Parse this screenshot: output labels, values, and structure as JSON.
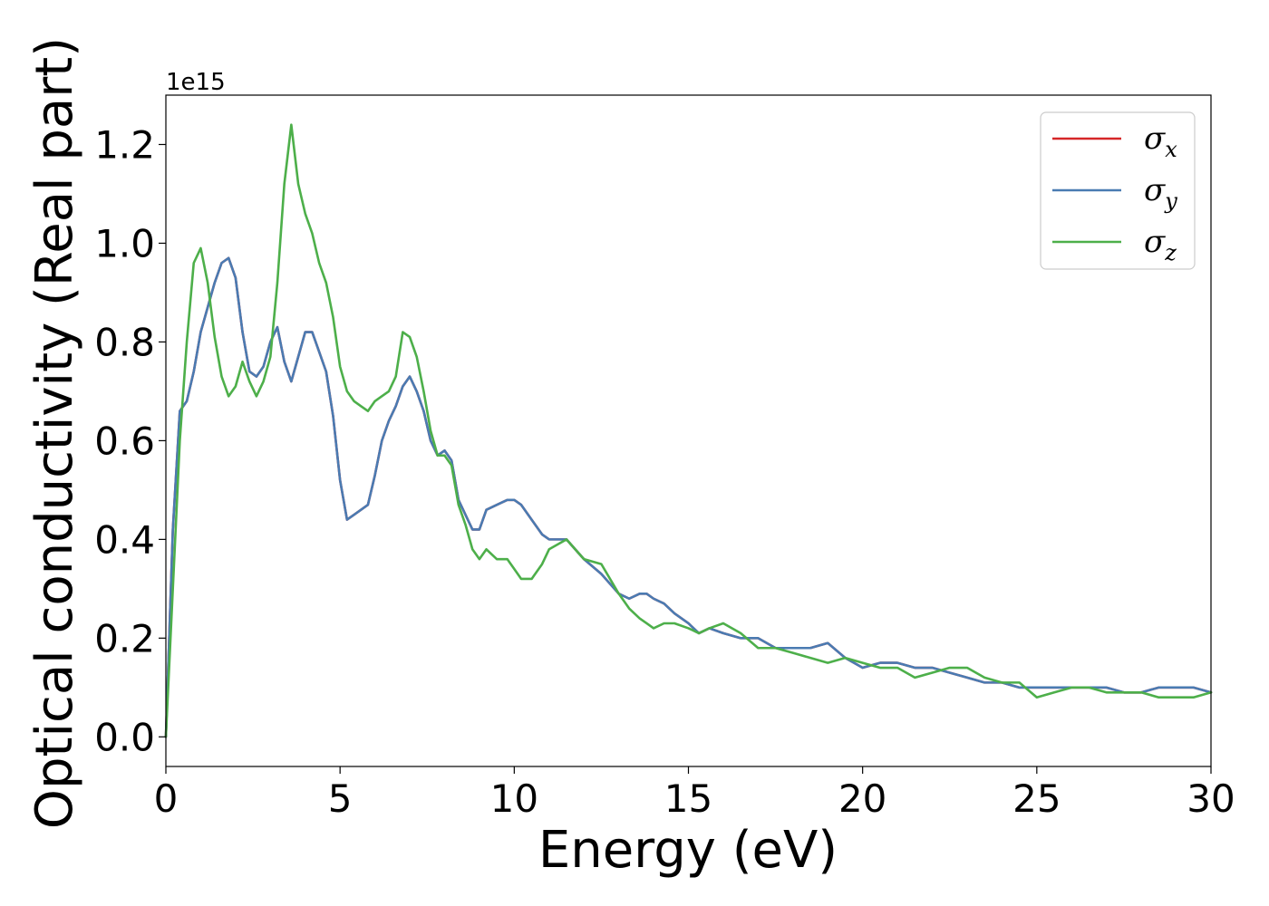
{
  "chart_data": {
    "type": "line",
    "xlabel": "Energy (eV)",
    "ylabel": "Optical conductivity (Real part)",
    "y_offset_text": "1e15",
    "xlim": [
      0,
      30
    ],
    "ylim": [
      -0.06,
      1.3
    ],
    "x_ticks": [
      0,
      5,
      10,
      15,
      20,
      25,
      30
    ],
    "x_tick_labels": [
      "0",
      "5",
      "10",
      "15",
      "20",
      "25",
      "30"
    ],
    "y_ticks": [
      0.0,
      0.2,
      0.4,
      0.6,
      0.8,
      1.0,
      1.2
    ],
    "y_tick_labels": [
      "0.0",
      "0.2",
      "0.4",
      "0.6",
      "0.8",
      "1.0",
      "1.2"
    ],
    "grid": false,
    "legend_position": "top-right",
    "series": [
      {
        "name": "σ",
        "subscript": "x",
        "color": "#d62728",
        "x": [
          0,
          0.2,
          0.4,
          0.6,
          0.8,
          1.0,
          1.2,
          1.4,
          1.6,
          1.8,
          2.0,
          2.2,
          2.4,
          2.6,
          2.8,
          3.0,
          3.2,
          3.4,
          3.6,
          3.8,
          4.0,
          4.2,
          4.4,
          4.6,
          4.8,
          5.0,
          5.2,
          5.4,
          5.6,
          5.8,
          6.0,
          6.2,
          6.4,
          6.6,
          6.8,
          7.0,
          7.2,
          7.4,
          7.6,
          7.8,
          8.0,
          8.2,
          8.4,
          8.6,
          8.8,
          9.0,
          9.2,
          9.5,
          9.8,
          10.0,
          10.2,
          10.5,
          10.8,
          11.0,
          11.5,
          12.0,
          12.5,
          13.0,
          13.3,
          13.6,
          13.8,
          14.0,
          14.3,
          14.6,
          15.0,
          15.3,
          15.6,
          16.0,
          16.5,
          17.0,
          17.5,
          18.0,
          18.5,
          19.0,
          19.5,
          20.0,
          20.5,
          21.0,
          21.5,
          22.0,
          22.5,
          23.0,
          23.5,
          24.0,
          24.5,
          25.0,
          25.5,
          26.0,
          26.5,
          27.0,
          27.5,
          28.0,
          28.5,
          29.0,
          29.5,
          30.0
        ],
        "y": [
          0.0,
          0.42,
          0.66,
          0.68,
          0.74,
          0.82,
          0.87,
          0.92,
          0.96,
          0.97,
          0.93,
          0.82,
          0.74,
          0.73,
          0.75,
          0.8,
          0.83,
          0.76,
          0.72,
          0.77,
          0.82,
          0.82,
          0.78,
          0.74,
          0.65,
          0.52,
          0.44,
          0.45,
          0.46,
          0.47,
          0.53,
          0.6,
          0.64,
          0.67,
          0.71,
          0.73,
          0.7,
          0.66,
          0.6,
          0.57,
          0.58,
          0.56,
          0.48,
          0.45,
          0.42,
          0.42,
          0.46,
          0.47,
          0.48,
          0.48,
          0.47,
          0.44,
          0.41,
          0.4,
          0.4,
          0.36,
          0.33,
          0.29,
          0.28,
          0.29,
          0.29,
          0.28,
          0.27,
          0.25,
          0.23,
          0.21,
          0.22,
          0.21,
          0.2,
          0.2,
          0.18,
          0.18,
          0.18,
          0.19,
          0.16,
          0.14,
          0.15,
          0.15,
          0.14,
          0.14,
          0.13,
          0.12,
          0.11,
          0.11,
          0.1,
          0.1,
          0.1,
          0.1,
          0.1,
          0.1,
          0.09,
          0.09,
          0.1,
          0.1,
          0.1,
          0.09
        ]
      },
      {
        "name": "σ",
        "subscript": "y",
        "color": "#4a7bb2",
        "x": [
          0,
          0.2,
          0.4,
          0.6,
          0.8,
          1.0,
          1.2,
          1.4,
          1.6,
          1.8,
          2.0,
          2.2,
          2.4,
          2.6,
          2.8,
          3.0,
          3.2,
          3.4,
          3.6,
          3.8,
          4.0,
          4.2,
          4.4,
          4.6,
          4.8,
          5.0,
          5.2,
          5.4,
          5.6,
          5.8,
          6.0,
          6.2,
          6.4,
          6.6,
          6.8,
          7.0,
          7.2,
          7.4,
          7.6,
          7.8,
          8.0,
          8.2,
          8.4,
          8.6,
          8.8,
          9.0,
          9.2,
          9.5,
          9.8,
          10.0,
          10.2,
          10.5,
          10.8,
          11.0,
          11.5,
          12.0,
          12.5,
          13.0,
          13.3,
          13.6,
          13.8,
          14.0,
          14.3,
          14.6,
          15.0,
          15.3,
          15.6,
          16.0,
          16.5,
          17.0,
          17.5,
          18.0,
          18.5,
          19.0,
          19.5,
          20.0,
          20.5,
          21.0,
          21.5,
          22.0,
          22.5,
          23.0,
          23.5,
          24.0,
          24.5,
          25.0,
          25.5,
          26.0,
          26.5,
          27.0,
          27.5,
          28.0,
          28.5,
          29.0,
          29.5,
          30.0
        ],
        "y": [
          0.0,
          0.42,
          0.66,
          0.68,
          0.74,
          0.82,
          0.87,
          0.92,
          0.96,
          0.97,
          0.93,
          0.82,
          0.74,
          0.73,
          0.75,
          0.8,
          0.83,
          0.76,
          0.72,
          0.77,
          0.82,
          0.82,
          0.78,
          0.74,
          0.65,
          0.52,
          0.44,
          0.45,
          0.46,
          0.47,
          0.53,
          0.6,
          0.64,
          0.67,
          0.71,
          0.73,
          0.7,
          0.66,
          0.6,
          0.57,
          0.58,
          0.56,
          0.48,
          0.45,
          0.42,
          0.42,
          0.46,
          0.47,
          0.48,
          0.48,
          0.47,
          0.44,
          0.41,
          0.4,
          0.4,
          0.36,
          0.33,
          0.29,
          0.28,
          0.29,
          0.29,
          0.28,
          0.27,
          0.25,
          0.23,
          0.21,
          0.22,
          0.21,
          0.2,
          0.2,
          0.18,
          0.18,
          0.18,
          0.19,
          0.16,
          0.14,
          0.15,
          0.15,
          0.14,
          0.14,
          0.13,
          0.12,
          0.11,
          0.11,
          0.1,
          0.1,
          0.1,
          0.1,
          0.1,
          0.1,
          0.09,
          0.09,
          0.1,
          0.1,
          0.1,
          0.09
        ]
      },
      {
        "name": "σ",
        "subscript": "z",
        "color": "#4daf4a",
        "x": [
          0,
          0.2,
          0.4,
          0.6,
          0.8,
          1.0,
          1.2,
          1.4,
          1.6,
          1.8,
          2.0,
          2.2,
          2.4,
          2.6,
          2.8,
          3.0,
          3.2,
          3.4,
          3.6,
          3.8,
          4.0,
          4.2,
          4.4,
          4.6,
          4.8,
          5.0,
          5.2,
          5.4,
          5.6,
          5.8,
          6.0,
          6.2,
          6.4,
          6.6,
          6.8,
          7.0,
          7.2,
          7.4,
          7.6,
          7.8,
          8.0,
          8.2,
          8.4,
          8.6,
          8.8,
          9.0,
          9.2,
          9.5,
          9.8,
          10.0,
          10.2,
          10.5,
          10.8,
          11.0,
          11.5,
          12.0,
          12.5,
          13.0,
          13.3,
          13.6,
          13.8,
          14.0,
          14.3,
          14.6,
          15.0,
          15.3,
          15.6,
          16.0,
          16.5,
          17.0,
          17.5,
          18.0,
          18.5,
          19.0,
          19.5,
          20.0,
          20.5,
          21.0,
          21.5,
          22.0,
          22.5,
          23.0,
          23.5,
          24.0,
          24.5,
          25.0,
          25.5,
          26.0,
          26.5,
          27.0,
          27.5,
          28.0,
          28.5,
          29.0,
          29.5,
          30.0
        ],
        "y": [
          0.0,
          0.3,
          0.6,
          0.8,
          0.96,
          0.99,
          0.92,
          0.81,
          0.73,
          0.69,
          0.71,
          0.76,
          0.72,
          0.69,
          0.72,
          0.77,
          0.92,
          1.12,
          1.24,
          1.12,
          1.06,
          1.02,
          0.96,
          0.92,
          0.85,
          0.75,
          0.7,
          0.68,
          0.67,
          0.66,
          0.68,
          0.69,
          0.7,
          0.73,
          0.82,
          0.81,
          0.77,
          0.7,
          0.62,
          0.57,
          0.57,
          0.55,
          0.47,
          0.43,
          0.38,
          0.36,
          0.38,
          0.36,
          0.36,
          0.34,
          0.32,
          0.32,
          0.35,
          0.38,
          0.4,
          0.36,
          0.35,
          0.29,
          0.26,
          0.24,
          0.23,
          0.22,
          0.23,
          0.23,
          0.22,
          0.21,
          0.22,
          0.23,
          0.21,
          0.18,
          0.18,
          0.17,
          0.16,
          0.15,
          0.16,
          0.15,
          0.14,
          0.14,
          0.12,
          0.13,
          0.14,
          0.14,
          0.12,
          0.11,
          0.11,
          0.08,
          0.09,
          0.1,
          0.1,
          0.09,
          0.09,
          0.09,
          0.08,
          0.08,
          0.08,
          0.09
        ]
      }
    ]
  }
}
